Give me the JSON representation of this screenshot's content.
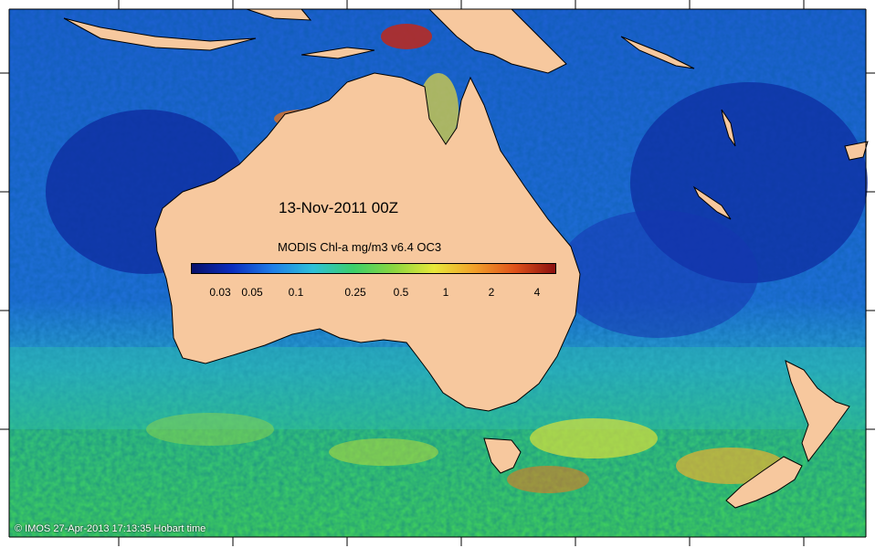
{
  "map": {
    "date_title": "13-Nov-2011 00Z",
    "colorbar": {
      "title": "MODIS Chl-a mg/m3 v6.4 OC3",
      "ticks": [
        "0.03",
        "0.05",
        "0.1",
        "0.25",
        "0.5",
        "1",
        "2",
        "4"
      ],
      "colors": [
        "#08106a",
        "#0a2dbf",
        "#1f7ee8",
        "#2fc0d8",
        "#3ccf6a",
        "#8bd640",
        "#e9e83a",
        "#f2a02a",
        "#e0521a",
        "#8a1010"
      ]
    },
    "credit": "© IMOS 27-Apr-2013 17:13:35 Hobart time",
    "colors": {
      "land": "#f7c89e",
      "coast": "#000000",
      "deep_ocean": "#0b2aa8",
      "open_ocean": "#1b64d6",
      "mid_ocean": "#2bb3c9",
      "southern_ocean": "#37c86a",
      "high_chl": "#e8e03a",
      "very_high_chl": "#d24a1a"
    }
  }
}
